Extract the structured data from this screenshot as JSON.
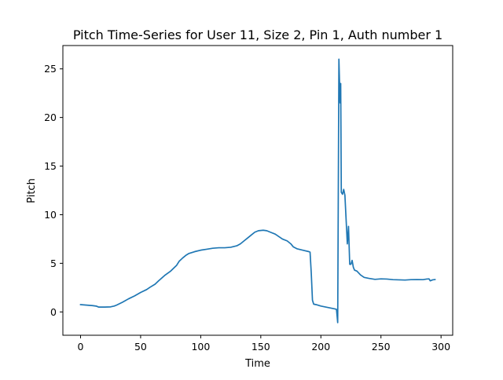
{
  "chart_data": {
    "type": "line",
    "title": "Pitch Time-Series for User 11, Size 2, Pin 1, Auth number 1",
    "xlabel": "Time",
    "ylabel": "Pitch",
    "xlim": [
      -14.7,
      309.7
    ],
    "ylim": [
      -2.4,
      27.4
    ],
    "xticks": [
      0,
      50,
      100,
      150,
      200,
      250,
      300
    ],
    "yticks": [
      0,
      5,
      10,
      15,
      20,
      25
    ],
    "grid": false,
    "legend": "none",
    "series": [
      {
        "color": "#1f77b4",
        "points": [
          [
            0,
            0.75
          ],
          [
            5,
            0.7
          ],
          [
            10,
            0.65
          ],
          [
            13,
            0.6
          ],
          [
            15,
            0.5
          ],
          [
            20,
            0.5
          ],
          [
            25,
            0.52
          ],
          [
            28,
            0.6
          ],
          [
            30,
            0.7
          ],
          [
            35,
            1.0
          ],
          [
            40,
            1.35
          ],
          [
            45,
            1.65
          ],
          [
            50,
            2.0
          ],
          [
            55,
            2.3
          ],
          [
            58,
            2.55
          ],
          [
            62,
            2.85
          ],
          [
            65,
            3.2
          ],
          [
            70,
            3.75
          ],
          [
            75,
            4.2
          ],
          [
            80,
            4.8
          ],
          [
            82,
            5.2
          ],
          [
            85,
            5.55
          ],
          [
            88,
            5.85
          ],
          [
            90,
            6.0
          ],
          [
            95,
            6.2
          ],
          [
            100,
            6.35
          ],
          [
            105,
            6.45
          ],
          [
            110,
            6.55
          ],
          [
            115,
            6.6
          ],
          [
            120,
            6.6
          ],
          [
            125,
            6.65
          ],
          [
            130,
            6.8
          ],
          [
            133,
            7.0
          ],
          [
            136,
            7.3
          ],
          [
            139,
            7.6
          ],
          [
            142,
            7.9
          ],
          [
            145,
            8.2
          ],
          [
            148,
            8.35
          ],
          [
            152,
            8.4
          ],
          [
            155,
            8.35
          ],
          [
            158,
            8.2
          ],
          [
            162,
            8.0
          ],
          [
            165,
            7.75
          ],
          [
            168,
            7.5
          ],
          [
            172,
            7.3
          ],
          [
            175,
            7.0
          ],
          [
            177,
            6.7
          ],
          [
            180,
            6.5
          ],
          [
            185,
            6.35
          ],
          [
            190,
            6.2
          ],
          [
            191,
            6.15
          ],
          [
            192,
            4.0
          ],
          [
            193,
            1.2
          ],
          [
            194,
            0.8
          ],
          [
            196,
            0.75
          ],
          [
            200,
            0.6
          ],
          [
            204,
            0.5
          ],
          [
            208,
            0.4
          ],
          [
            210,
            0.35
          ],
          [
            212,
            0.3
          ],
          [
            213,
            0.25
          ],
          [
            214,
            -1.1
          ],
          [
            215,
            26.0
          ],
          [
            216,
            21.5
          ],
          [
            216.5,
            23.5
          ],
          [
            217,
            12.3
          ],
          [
            218,
            12.1
          ],
          [
            219,
            12.6
          ],
          [
            220,
            12.0
          ],
          [
            221,
            9.5
          ],
          [
            222,
            7.0
          ],
          [
            223,
            8.8
          ],
          [
            224,
            4.9
          ],
          [
            225,
            4.9
          ],
          [
            226,
            5.3
          ],
          [
            227,
            4.6
          ],
          [
            228,
            4.3
          ],
          [
            230,
            4.2
          ],
          [
            233,
            3.8
          ],
          [
            236,
            3.55
          ],
          [
            240,
            3.45
          ],
          [
            245,
            3.35
          ],
          [
            250,
            3.4
          ],
          [
            255,
            3.38
          ],
          [
            260,
            3.32
          ],
          [
            265,
            3.3
          ],
          [
            270,
            3.28
          ],
          [
            275,
            3.32
          ],
          [
            280,
            3.33
          ],
          [
            285,
            3.32
          ],
          [
            288,
            3.38
          ],
          [
            290,
            3.4
          ],
          [
            291,
            3.2
          ],
          [
            293,
            3.3
          ],
          [
            295,
            3.33
          ]
        ]
      }
    ]
  }
}
